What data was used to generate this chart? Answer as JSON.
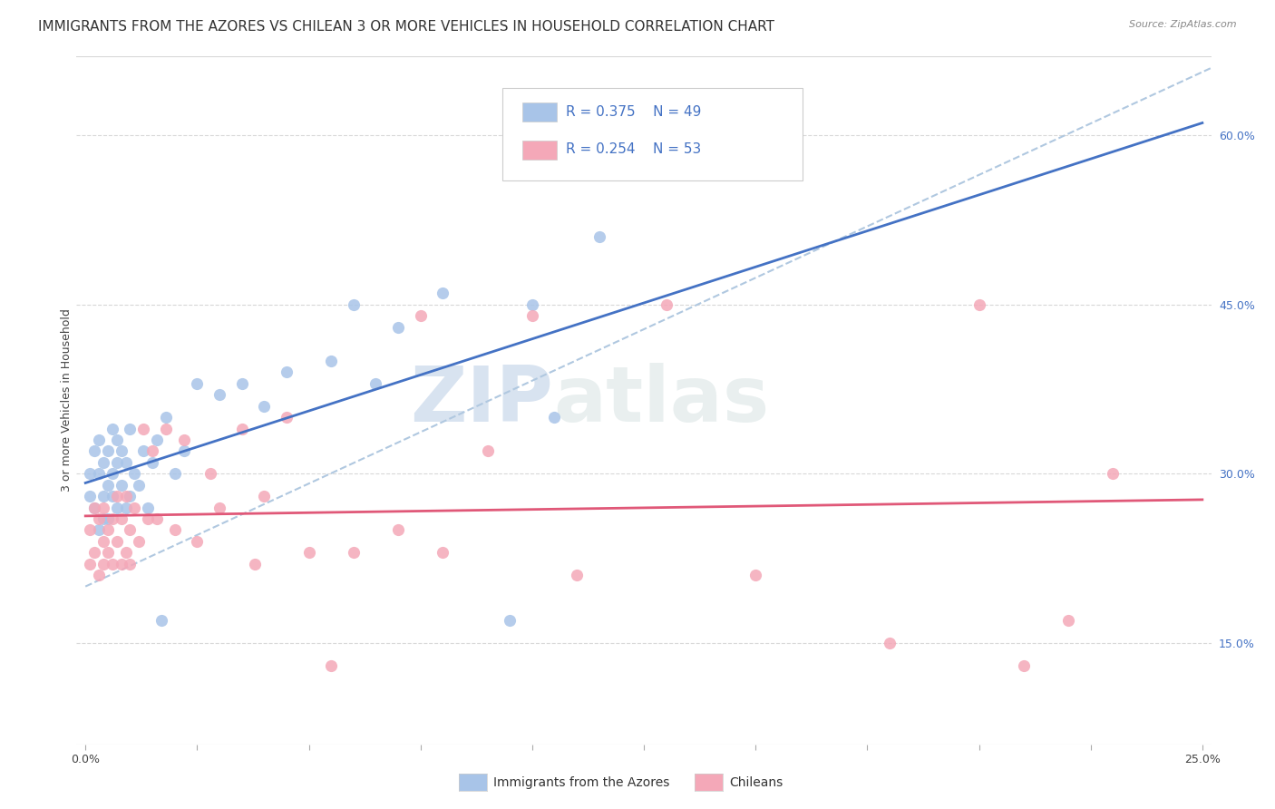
{
  "title": "IMMIGRANTS FROM THE AZORES VS CHILEAN 3 OR MORE VEHICLES IN HOUSEHOLD CORRELATION CHART",
  "source": "Source: ZipAtlas.com",
  "ylabel": "3 or more Vehicles in Household",
  "ytick_values": [
    0.15,
    0.3,
    0.45,
    0.6
  ],
  "xlim": [
    -0.002,
    0.252
  ],
  "ylim": [
    0.06,
    0.67
  ],
  "legend_label1": "Immigrants from the Azores",
  "legend_label2": "Chileans",
  "R1": 0.375,
  "N1": 49,
  "R2": 0.254,
  "N2": 53,
  "color1": "#a8c4e8",
  "color2": "#f4a8b8",
  "trendline1_color": "#4472c4",
  "trendline2_color": "#e05878",
  "dashed_line_color": "#b0c8e0",
  "azores_x": [
    0.001,
    0.001,
    0.002,
    0.002,
    0.003,
    0.003,
    0.003,
    0.004,
    0.004,
    0.004,
    0.005,
    0.005,
    0.005,
    0.006,
    0.006,
    0.006,
    0.007,
    0.007,
    0.007,
    0.008,
    0.008,
    0.009,
    0.009,
    0.01,
    0.01,
    0.011,
    0.012,
    0.013,
    0.014,
    0.015,
    0.016,
    0.017,
    0.018,
    0.02,
    0.022,
    0.025,
    0.03,
    0.035,
    0.04,
    0.045,
    0.055,
    0.06,
    0.065,
    0.07,
    0.08,
    0.095,
    0.1,
    0.105,
    0.115
  ],
  "azores_y": [
    0.28,
    0.3,
    0.27,
    0.32,
    0.3,
    0.25,
    0.33,
    0.28,
    0.31,
    0.26,
    0.29,
    0.32,
    0.26,
    0.3,
    0.34,
    0.28,
    0.31,
    0.27,
    0.33,
    0.29,
    0.32,
    0.27,
    0.31,
    0.28,
    0.34,
    0.3,
    0.29,
    0.32,
    0.27,
    0.31,
    0.33,
    0.17,
    0.35,
    0.3,
    0.32,
    0.38,
    0.37,
    0.38,
    0.36,
    0.39,
    0.4,
    0.45,
    0.38,
    0.43,
    0.46,
    0.17,
    0.45,
    0.35,
    0.51
  ],
  "chilean_x": [
    0.001,
    0.001,
    0.002,
    0.002,
    0.003,
    0.003,
    0.004,
    0.004,
    0.004,
    0.005,
    0.005,
    0.006,
    0.006,
    0.007,
    0.007,
    0.008,
    0.008,
    0.009,
    0.009,
    0.01,
    0.01,
    0.011,
    0.012,
    0.013,
    0.014,
    0.015,
    0.016,
    0.018,
    0.02,
    0.022,
    0.025,
    0.028,
    0.03,
    0.035,
    0.038,
    0.04,
    0.045,
    0.05,
    0.055,
    0.06,
    0.07,
    0.075,
    0.08,
    0.09,
    0.1,
    0.11,
    0.13,
    0.15,
    0.18,
    0.2,
    0.21,
    0.22,
    0.23
  ],
  "chilean_y": [
    0.22,
    0.25,
    0.23,
    0.27,
    0.21,
    0.26,
    0.24,
    0.22,
    0.27,
    0.23,
    0.25,
    0.22,
    0.26,
    0.24,
    0.28,
    0.22,
    0.26,
    0.23,
    0.28,
    0.22,
    0.25,
    0.27,
    0.24,
    0.34,
    0.26,
    0.32,
    0.26,
    0.34,
    0.25,
    0.33,
    0.24,
    0.3,
    0.27,
    0.34,
    0.22,
    0.28,
    0.35,
    0.23,
    0.13,
    0.23,
    0.25,
    0.44,
    0.23,
    0.32,
    0.44,
    0.21,
    0.45,
    0.21,
    0.15,
    0.45,
    0.13,
    0.17,
    0.3
  ],
  "watermark_zip": "ZIP",
  "watermark_atlas": "atlas",
  "title_fontsize": 11,
  "axis_fontsize": 9,
  "tick_fontsize": 9,
  "legend_fontsize": 11
}
